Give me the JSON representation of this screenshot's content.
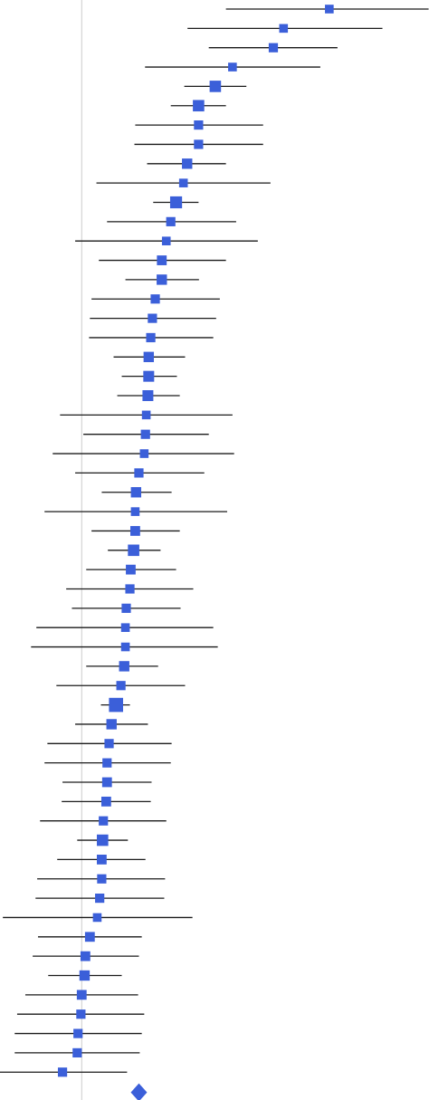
{
  "chart_data": {
    "type": "forest",
    "title": "",
    "xlabel": "",
    "ylabel": "",
    "grid": false,
    "legend": "none",
    "colors": {
      "marker": "#3B5FD9",
      "ci_line": "#1a1a1a",
      "reference_line": "#cccccc",
      "summary": "#3B5FD9"
    },
    "x_domain": [
      -0.2,
      0.85
    ],
    "reference_value": 0.0,
    "studies": [
      {
        "est": 0.606,
        "lo": 0.353,
        "hi": 0.849,
        "weight": 0.6
      },
      {
        "est": 0.494,
        "lo": 0.259,
        "hi": 0.736,
        "weight": 0.6
      },
      {
        "est": 0.469,
        "lo": 0.311,
        "hi": 0.626,
        "weight": 0.7
      },
      {
        "est": 0.369,
        "lo": 0.155,
        "hi": 0.584,
        "weight": 0.6
      },
      {
        "est": 0.327,
        "lo": 0.251,
        "hi": 0.403,
        "weight": 1.1
      },
      {
        "est": 0.286,
        "lo": 0.218,
        "hi": 0.353,
        "weight": 1.1
      },
      {
        "est": 0.286,
        "lo": 0.131,
        "hi": 0.444,
        "weight": 0.7
      },
      {
        "est": 0.286,
        "lo": 0.129,
        "hi": 0.444,
        "weight": 0.7
      },
      {
        "est": 0.258,
        "lo": 0.16,
        "hi": 0.353,
        "weight": 0.9
      },
      {
        "est": 0.249,
        "lo": 0.036,
        "hi": 0.462,
        "weight": 0.6
      },
      {
        "est": 0.231,
        "lo": 0.175,
        "hi": 0.286,
        "weight": 1.2
      },
      {
        "est": 0.218,
        "lo": 0.062,
        "hi": 0.378,
        "weight": 0.7
      },
      {
        "est": 0.207,
        "lo": -0.016,
        "hi": 0.431,
        "weight": 0.6
      },
      {
        "est": 0.196,
        "lo": 0.042,
        "hi": 0.353,
        "weight": 0.8
      },
      {
        "est": 0.196,
        "lo": 0.107,
        "hi": 0.287,
        "weight": 0.9
      },
      {
        "est": 0.18,
        "lo": 0.024,
        "hi": 0.338,
        "weight": 0.7
      },
      {
        "est": 0.173,
        "lo": 0.02,
        "hi": 0.329,
        "weight": 0.7
      },
      {
        "est": 0.169,
        "lo": 0.018,
        "hi": 0.322,
        "weight": 0.7
      },
      {
        "est": 0.164,
        "lo": 0.078,
        "hi": 0.253,
        "weight": 0.9
      },
      {
        "est": 0.164,
        "lo": 0.098,
        "hi": 0.233,
        "weight": 1.0
      },
      {
        "est": 0.162,
        "lo": 0.087,
        "hi": 0.24,
        "weight": 1.0
      },
      {
        "est": 0.158,
        "lo": -0.053,
        "hi": 0.369,
        "weight": 0.6
      },
      {
        "est": 0.156,
        "lo": 0.004,
        "hi": 0.311,
        "weight": 0.7
      },
      {
        "est": 0.153,
        "lo": -0.071,
        "hi": 0.373,
        "weight": 0.6
      },
      {
        "est": 0.14,
        "lo": -0.016,
        "hi": 0.3,
        "weight": 0.7
      },
      {
        "est": 0.133,
        "lo": 0.049,
        "hi": 0.22,
        "weight": 0.9
      },
      {
        "est": 0.131,
        "lo": -0.091,
        "hi": 0.356,
        "weight": 0.6
      },
      {
        "est": 0.131,
        "lo": 0.024,
        "hi": 0.24,
        "weight": 0.8
      },
      {
        "est": 0.127,
        "lo": 0.064,
        "hi": 0.193,
        "weight": 1.1
      },
      {
        "est": 0.12,
        "lo": 0.011,
        "hi": 0.231,
        "weight": 0.8
      },
      {
        "est": 0.118,
        "lo": -0.038,
        "hi": 0.273,
        "weight": 0.7
      },
      {
        "est": 0.109,
        "lo": -0.024,
        "hi": 0.242,
        "weight": 0.7
      },
      {
        "est": 0.107,
        "lo": -0.111,
        "hi": 0.322,
        "weight": 0.6
      },
      {
        "est": 0.107,
        "lo": -0.124,
        "hi": 0.333,
        "weight": 0.6
      },
      {
        "est": 0.104,
        "lo": 0.011,
        "hi": 0.187,
        "weight": 0.9
      },
      {
        "est": 0.096,
        "lo": -0.062,
        "hi": 0.253,
        "weight": 0.7
      },
      {
        "est": 0.084,
        "lo": 0.047,
        "hi": 0.118,
        "weight": 1.6
      },
      {
        "est": 0.073,
        "lo": -0.016,
        "hi": 0.162,
        "weight": 0.9
      },
      {
        "est": 0.067,
        "lo": -0.084,
        "hi": 0.22,
        "weight": 0.7
      },
      {
        "est": 0.062,
        "lo": -0.091,
        "hi": 0.218,
        "weight": 0.7
      },
      {
        "est": 0.062,
        "lo": -0.047,
        "hi": 0.171,
        "weight": 0.8
      },
      {
        "est": 0.06,
        "lo": -0.049,
        "hi": 0.169,
        "weight": 0.8
      },
      {
        "est": 0.053,
        "lo": -0.102,
        "hi": 0.207,
        "weight": 0.7
      },
      {
        "est": 0.051,
        "lo": -0.011,
        "hi": 0.113,
        "weight": 1.1
      },
      {
        "est": 0.049,
        "lo": -0.06,
        "hi": 0.156,
        "weight": 0.8
      },
      {
        "est": 0.049,
        "lo": -0.109,
        "hi": 0.204,
        "weight": 0.7
      },
      {
        "est": 0.044,
        "lo": -0.113,
        "hi": 0.202,
        "weight": 0.7
      },
      {
        "est": 0.038,
        "lo": -0.193,
        "hi": 0.271,
        "weight": 0.6
      },
      {
        "est": 0.02,
        "lo": -0.107,
        "hi": 0.147,
        "weight": 0.8
      },
      {
        "est": 0.009,
        "lo": -0.12,
        "hi": 0.14,
        "weight": 0.8
      },
      {
        "est": 0.007,
        "lo": -0.082,
        "hi": 0.098,
        "weight": 0.9
      },
      {
        "est": 0.0,
        "lo": -0.138,
        "hi": 0.138,
        "weight": 0.8
      },
      {
        "est": -0.002,
        "lo": -0.158,
        "hi": 0.153,
        "weight": 0.7
      },
      {
        "est": -0.009,
        "lo": -0.164,
        "hi": 0.147,
        "weight": 0.7
      },
      {
        "est": -0.011,
        "lo": -0.164,
        "hi": 0.142,
        "weight": 0.7
      },
      {
        "est": -0.047,
        "lo": -0.2,
        "hi": 0.111,
        "weight": 0.7
      }
    ],
    "summary": {
      "est": 0.14,
      "lo": 0.122,
      "hi": 0.158
    }
  }
}
